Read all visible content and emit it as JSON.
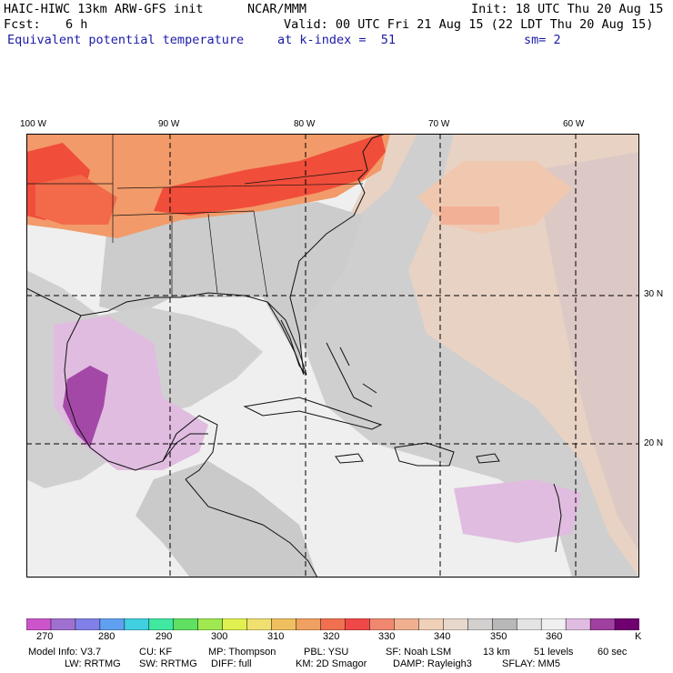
{
  "header": {
    "model_title": "HAIC-HIWC 13km ARW-GFS init",
    "org": "NCAR/MMM",
    "init": "Init: 18 UTC Thu 20 Aug 15",
    "fcst_label": "Fcst:",
    "fcst_value": "6 h",
    "valid": "Valid: 00 UTC Fri 21 Aug 15 (22 LDT Thu 20 Aug 15)",
    "field_name": "Equivalent potential temperature",
    "level": "at k-index =  51",
    "smoothing": "sm= 2"
  },
  "map": {
    "longitude_labels": [
      "100 W",
      "90 W",
      "80 W",
      "70 W",
      "60 W"
    ],
    "latitude_labels": [
      "30 N",
      "20 N"
    ]
  },
  "colorbar": {
    "colors": [
      "#cc55cc",
      "#a070d0",
      "#8080e8",
      "#60a0f0",
      "#40d0e0",
      "#40e8a0",
      "#60e060",
      "#a0e850",
      "#e0f050",
      "#f0e070",
      "#f0c060",
      "#f0a060",
      "#f07050",
      "#f04848",
      "#f08870",
      "#f0b090",
      "#f0d0b8",
      "#e8d8cc",
      "#d4d0d0",
      "#b8b8b8",
      "#e4e4e4",
      "#f0f0f0",
      "#e0bce0",
      "#a040a0",
      "#700070"
    ],
    "tick_labels": [
      "270",
      "280",
      "290",
      "300",
      "310",
      "320",
      "330",
      "340",
      "350",
      "360"
    ],
    "unit": "K",
    "accent_colors": {
      "purple": "#8e3a96",
      "light_gray": "#efefef",
      "mid_gray": "#cfcfcf",
      "orange": "#f29a6a",
      "red": "#f04e3a",
      "tan": "#e8cbb8"
    }
  },
  "footer": {
    "line1": [
      "Model Info: V3.7",
      "CU: KF",
      "MP: Thompson",
      "PBL: YSU",
      "SF: Noah LSM",
      "13 km",
      "51 levels",
      "60 sec"
    ],
    "line2": [
      "LW: RRTMG",
      "SW: RRTMG",
      "DIFF: full",
      "KM: 2D Smagor",
      "DAMP: Rayleigh3",
      "SFLAY: MM5"
    ]
  }
}
